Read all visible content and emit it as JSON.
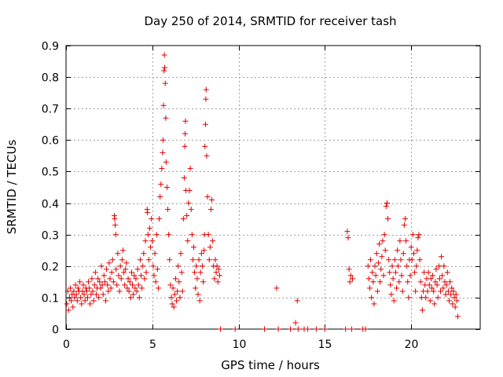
{
  "chart_data": {
    "type": "scatter",
    "title": "Day 250 of 2014, SRMTID for receiver tash",
    "xlabel": "GPS time / hours",
    "ylabel": "SRMTID / TECUs",
    "xlim": [
      0,
      24
    ],
    "ylim": [
      0,
      0.9
    ],
    "xticks": [
      0,
      5,
      10,
      15,
      20
    ],
    "yticks": [
      0,
      0.1,
      0.2,
      0.3,
      0.4,
      0.5,
      0.6,
      0.7,
      0.8,
      0.9
    ],
    "xtick_labels": [
      "0",
      "5",
      "10",
      "15",
      "20"
    ],
    "ytick_labels": [
      "0",
      "0.1",
      "0.2",
      "0.3",
      "0.4",
      "0.5",
      "0.6",
      "0.7",
      "0.8",
      "0.9"
    ],
    "grid": true,
    "marker": "plus",
    "color": "#e00000",
    "series": [
      {
        "name": "SRMTID",
        "points": [
          [
            0.05,
            0.08
          ],
          [
            0.1,
            0.12
          ],
          [
            0.15,
            0.06
          ],
          [
            0.2,
            0.1
          ],
          [
            0.25,
            0.13
          ],
          [
            0.3,
            0.09
          ],
          [
            0.35,
            0.11
          ],
          [
            0.4,
            0.07
          ],
          [
            0.45,
            0.12
          ],
          [
            0.5,
            0.1
          ],
          [
            0.55,
            0.14
          ],
          [
            0.6,
            0.11
          ],
          [
            0.65,
            0.09
          ],
          [
            0.7,
            0.13
          ],
          [
            0.75,
            0.12
          ],
          [
            0.8,
            0.15
          ],
          [
            0.85,
            0.1
          ],
          [
            0.9,
            0.08
          ],
          [
            0.95,
            0.12
          ],
          [
            1.0,
            0.14
          ],
          [
            1.05,
            0.11
          ],
          [
            1.1,
            0.09
          ],
          [
            1.15,
            0.13
          ],
          [
            1.2,
            0.12
          ],
          [
            1.25,
            0.1
          ],
          [
            1.3,
            0.15
          ],
          [
            1.35,
            0.13
          ],
          [
            1.4,
            0.08
          ],
          [
            1.45,
            0.11
          ],
          [
            1.5,
            0.16
          ],
          [
            1.55,
            0.12
          ],
          [
            1.6,
            0.09
          ],
          [
            1.65,
            0.14
          ],
          [
            1.7,
            0.18
          ],
          [
            1.75,
            0.11
          ],
          [
            1.8,
            0.13
          ],
          [
            1.85,
            0.16
          ],
          [
            1.9,
            0.1
          ],
          [
            1.95,
            0.15
          ],
          [
            2.0,
            0.13
          ],
          [
            2.05,
            0.2
          ],
          [
            2.1,
            0.14
          ],
          [
            2.15,
            0.11
          ],
          [
            2.2,
            0.17
          ],
          [
            2.25,
            0.15
          ],
          [
            2.3,
            0.09
          ],
          [
            2.35,
            0.19
          ],
          [
            2.4,
            0.14
          ],
          [
            2.45,
            0.12
          ],
          [
            2.5,
            0.21
          ],
          [
            2.55,
            0.16
          ],
          [
            2.6,
            0.13
          ],
          [
            2.65,
            0.18
          ],
          [
            2.7,
            0.22
          ],
          [
            2.75,
            0.15
          ],
          [
            2.8,
            0.36
          ],
          [
            2.82,
            0.35
          ],
          [
            2.85,
            0.33
          ],
          [
            2.88,
            0.3
          ],
          [
            2.9,
            0.19
          ],
          [
            2.95,
            0.14
          ],
          [
            3.0,
            0.24
          ],
          [
            3.05,
            0.17
          ],
          [
            3.1,
            0.12
          ],
          [
            3.15,
            0.2
          ],
          [
            3.2,
            0.16
          ],
          [
            3.25,
            0.22
          ],
          [
            3.3,
            0.25
          ],
          [
            3.35,
            0.18
          ],
          [
            3.4,
            0.14
          ],
          [
            3.45,
            0.19
          ],
          [
            3.5,
            0.21
          ],
          [
            3.55,
            0.13
          ],
          [
            3.6,
            0.16
          ],
          [
            3.65,
            0.12
          ],
          [
            3.7,
            0.15
          ],
          [
            3.75,
            0.1
          ],
          [
            3.8,
            0.18
          ],
          [
            3.85,
            0.14
          ],
          [
            3.9,
            0.11
          ],
          [
            3.95,
            0.17
          ],
          [
            4.0,
            0.13
          ],
          [
            4.05,
            0.16
          ],
          [
            4.1,
            0.12
          ],
          [
            4.15,
            0.19
          ],
          [
            4.2,
            0.14
          ],
          [
            4.25,
            0.1
          ],
          [
            4.3,
            0.22
          ],
          [
            4.35,
            0.17
          ],
          [
            4.4,
            0.13
          ],
          [
            4.45,
            0.2
          ],
          [
            4.5,
            0.24
          ],
          [
            4.55,
            0.16
          ],
          [
            4.6,
            0.28
          ],
          [
            4.65,
            0.18
          ],
          [
            4.7,
            0.38
          ],
          [
            4.72,
            0.37
          ],
          [
            4.75,
            0.3
          ],
          [
            4.8,
            0.22
          ],
          [
            4.85,
            0.32
          ],
          [
            4.9,
            0.26
          ],
          [
            4.95,
            0.35
          ],
          [
            5.0,
            0.28
          ],
          [
            5.05,
            0.2
          ],
          [
            5.1,
            0.17
          ],
          [
            5.15,
            0.24
          ],
          [
            5.2,
            0.15
          ],
          [
            5.25,
            0.3
          ],
          [
            5.3,
            0.19
          ],
          [
            5.35,
            0.13
          ],
          [
            5.4,
            0.35
          ],
          [
            5.45,
            0.42
          ],
          [
            5.5,
            0.46
          ],
          [
            5.55,
            0.51
          ],
          [
            5.6,
            0.56
          ],
          [
            5.62,
            0.6
          ],
          [
            5.65,
            0.71
          ],
          [
            5.68,
            0.82
          ],
          [
            5.7,
            0.87
          ],
          [
            5.72,
            0.83
          ],
          [
            5.75,
            0.78
          ],
          [
            5.78,
            0.67
          ],
          [
            5.8,
            0.53
          ],
          [
            5.85,
            0.45
          ],
          [
            5.9,
            0.38
          ],
          [
            5.95,
            0.3
          ],
          [
            6.0,
            0.22
          ],
          [
            6.05,
            0.14
          ],
          [
            6.1,
            0.1
          ],
          [
            6.15,
            0.08
          ],
          [
            6.2,
            0.13
          ],
          [
            6.25,
            0.07
          ],
          [
            6.3,
            0.11
          ],
          [
            6.35,
            0.16
          ],
          [
            6.4,
            0.09
          ],
          [
            6.45,
            0.12
          ],
          [
            6.5,
            0.2
          ],
          [
            6.55,
            0.15
          ],
          [
            6.6,
            0.1
          ],
          [
            6.65,
            0.24
          ],
          [
            6.7,
            0.18
          ],
          [
            6.75,
            0.12
          ],
          [
            6.8,
            0.35
          ],
          [
            6.85,
            0.48
          ],
          [
            6.88,
            0.58
          ],
          [
            6.9,
            0.62
          ],
          [
            6.92,
            0.66
          ],
          [
            6.95,
            0.44
          ],
          [
            7.0,
            0.36
          ],
          [
            7.05,
            0.28
          ],
          [
            7.1,
            0.4
          ],
          [
            7.15,
            0.44
          ],
          [
            7.2,
            0.51
          ],
          [
            7.25,
            0.38
          ],
          [
            7.3,
            0.3
          ],
          [
            7.35,
            0.22
          ],
          [
            7.4,
            0.26
          ],
          [
            7.45,
            0.18
          ],
          [
            7.5,
            0.13
          ],
          [
            7.55,
            0.2
          ],
          [
            7.6,
            0.16
          ],
          [
            7.65,
            0.11
          ],
          [
            7.7,
            0.22
          ],
          [
            7.75,
            0.09
          ],
          [
            7.8,
            0.18
          ],
          [
            7.85,
            0.24
          ],
          [
            7.9,
            0.2
          ],
          [
            7.95,
            0.15
          ],
          [
            8.0,
            0.25
          ],
          [
            8.02,
            0.3
          ],
          [
            8.05,
            0.58
          ],
          [
            8.08,
            0.65
          ],
          [
            8.1,
            0.73
          ],
          [
            8.12,
            0.76
          ],
          [
            8.15,
            0.55
          ],
          [
            8.2,
            0.42
          ],
          [
            8.25,
            0.3
          ],
          [
            8.3,
            0.22
          ],
          [
            8.35,
            0.26
          ],
          [
            8.4,
            0.38
          ],
          [
            8.45,
            0.41
          ],
          [
            8.5,
            0.28
          ],
          [
            8.55,
            0.2
          ],
          [
            8.6,
            0.16
          ],
          [
            8.65,
            0.22
          ],
          [
            8.7,
            0.18
          ],
          [
            8.75,
            0.2
          ],
          [
            8.8,
            0.15
          ],
          [
            8.85,
            0.19
          ],
          [
            8.9,
            0.17
          ],
          [
            8.95,
            0.0
          ],
          [
            9.8,
            0.0
          ],
          [
            11.5,
            0.0
          ],
          [
            12.2,
            0.13
          ],
          [
            12.3,
            0.0
          ],
          [
            13.0,
            0.0
          ],
          [
            13.3,
            0.02
          ],
          [
            13.4,
            0.09
          ],
          [
            13.45,
            0.0
          ],
          [
            13.8,
            0.0
          ],
          [
            14.0,
            0.0
          ],
          [
            14.5,
            0.0
          ],
          [
            15.0,
            0.0
          ],
          [
            16.2,
            0.0
          ],
          [
            16.3,
            0.31
          ],
          [
            16.35,
            0.29
          ],
          [
            16.4,
            0.19
          ],
          [
            16.45,
            0.15
          ],
          [
            16.5,
            0.17
          ],
          [
            16.55,
            0.0
          ],
          [
            16.6,
            0.16
          ],
          [
            17.2,
            0.0
          ],
          [
            17.35,
            0.0
          ],
          [
            17.5,
            0.2
          ],
          [
            17.55,
            0.16
          ],
          [
            17.6,
            0.13
          ],
          [
            17.65,
            0.22
          ],
          [
            17.7,
            0.1
          ],
          [
            17.75,
            0.18
          ],
          [
            17.8,
            0.15
          ],
          [
            17.85,
            0.08
          ],
          [
            17.9,
            0.2
          ],
          [
            17.95,
            0.17
          ],
          [
            18.0,
            0.24
          ],
          [
            18.05,
            0.12
          ],
          [
            18.1,
            0.21
          ],
          [
            18.15,
            0.27
          ],
          [
            18.2,
            0.15
          ],
          [
            18.25,
            0.19
          ],
          [
            18.3,
            0.23
          ],
          [
            18.35,
            0.28
          ],
          [
            18.4,
            0.17
          ],
          [
            18.45,
            0.3
          ],
          [
            18.5,
            0.25
          ],
          [
            18.55,
            0.39
          ],
          [
            18.6,
            0.4
          ],
          [
            18.65,
            0.35
          ],
          [
            18.7,
            0.22
          ],
          [
            18.75,
            0.18
          ],
          [
            18.8,
            0.14
          ],
          [
            18.85,
            0.11
          ],
          [
            18.9,
            0.2
          ],
          [
            18.95,
            0.16
          ],
          [
            19.0,
            0.09
          ],
          [
            19.05,
            0.22
          ],
          [
            19.1,
            0.18
          ],
          [
            19.15,
            0.13
          ],
          [
            19.2,
            0.25
          ],
          [
            19.25,
            0.2
          ],
          [
            19.3,
            0.15
          ],
          [
            19.35,
            0.28
          ],
          [
            19.4,
            0.22
          ],
          [
            19.45,
            0.17
          ],
          [
            19.5,
            0.12
          ],
          [
            19.55,
            0.24
          ],
          [
            19.6,
            0.33
          ],
          [
            19.65,
            0.35
          ],
          [
            19.7,
            0.28
          ],
          [
            19.75,
            0.2
          ],
          [
            19.8,
            0.15
          ],
          [
            19.85,
            0.1
          ],
          [
            19.9,
            0.22
          ],
          [
            19.95,
            0.17
          ],
          [
            20.0,
            0.26
          ],
          [
            20.05,
            0.22
          ],
          [
            20.1,
            0.3
          ],
          [
            20.15,
            0.24
          ],
          [
            20.2,
            0.18
          ],
          [
            20.25,
            0.12
          ],
          [
            20.3,
            0.2
          ],
          [
            20.35,
            0.25
          ],
          [
            20.4,
            0.29
          ],
          [
            20.45,
            0.3
          ],
          [
            20.5,
            0.22
          ],
          [
            20.55,
            0.15
          ],
          [
            20.6,
            0.1
          ],
          [
            20.65,
            0.06
          ],
          [
            20.7,
            0.12
          ],
          [
            20.75,
            0.18
          ],
          [
            20.8,
            0.14
          ],
          [
            20.85,
            0.1
          ],
          [
            20.9,
            0.16
          ],
          [
            20.95,
            0.12
          ],
          [
            21.0,
            0.18
          ],
          [
            21.05,
            0.14
          ],
          [
            21.1,
            0.09
          ],
          [
            21.15,
            0.16
          ],
          [
            21.2,
            0.13
          ],
          [
            21.25,
            0.17
          ],
          [
            21.3,
            0.12
          ],
          [
            21.35,
            0.08
          ],
          [
            21.4,
            0.15
          ],
          [
            21.45,
            0.19
          ],
          [
            21.5,
            0.14
          ],
          [
            21.55,
            0.1
          ],
          [
            21.6,
            0.2
          ],
          [
            21.65,
            0.16
          ],
          [
            21.7,
            0.12
          ],
          [
            21.75,
            0.23
          ],
          [
            21.8,
            0.17
          ],
          [
            21.85,
            0.13
          ],
          [
            21.9,
            0.2
          ],
          [
            21.95,
            0.15
          ],
          [
            22.0,
            0.11
          ],
          [
            22.05,
            0.14
          ],
          [
            22.1,
            0.18
          ],
          [
            22.15,
            0.12
          ],
          [
            22.2,
            0.09
          ],
          [
            22.25,
            0.15
          ],
          [
            22.3,
            0.11
          ],
          [
            22.35,
            0.13
          ],
          [
            22.4,
            0.08
          ],
          [
            22.45,
            0.12
          ],
          [
            22.5,
            0.1
          ],
          [
            22.55,
            0.07
          ],
          [
            22.6,
            0.11
          ],
          [
            22.65,
            0.09
          ],
          [
            22.7,
            0.04
          ]
        ]
      }
    ]
  }
}
